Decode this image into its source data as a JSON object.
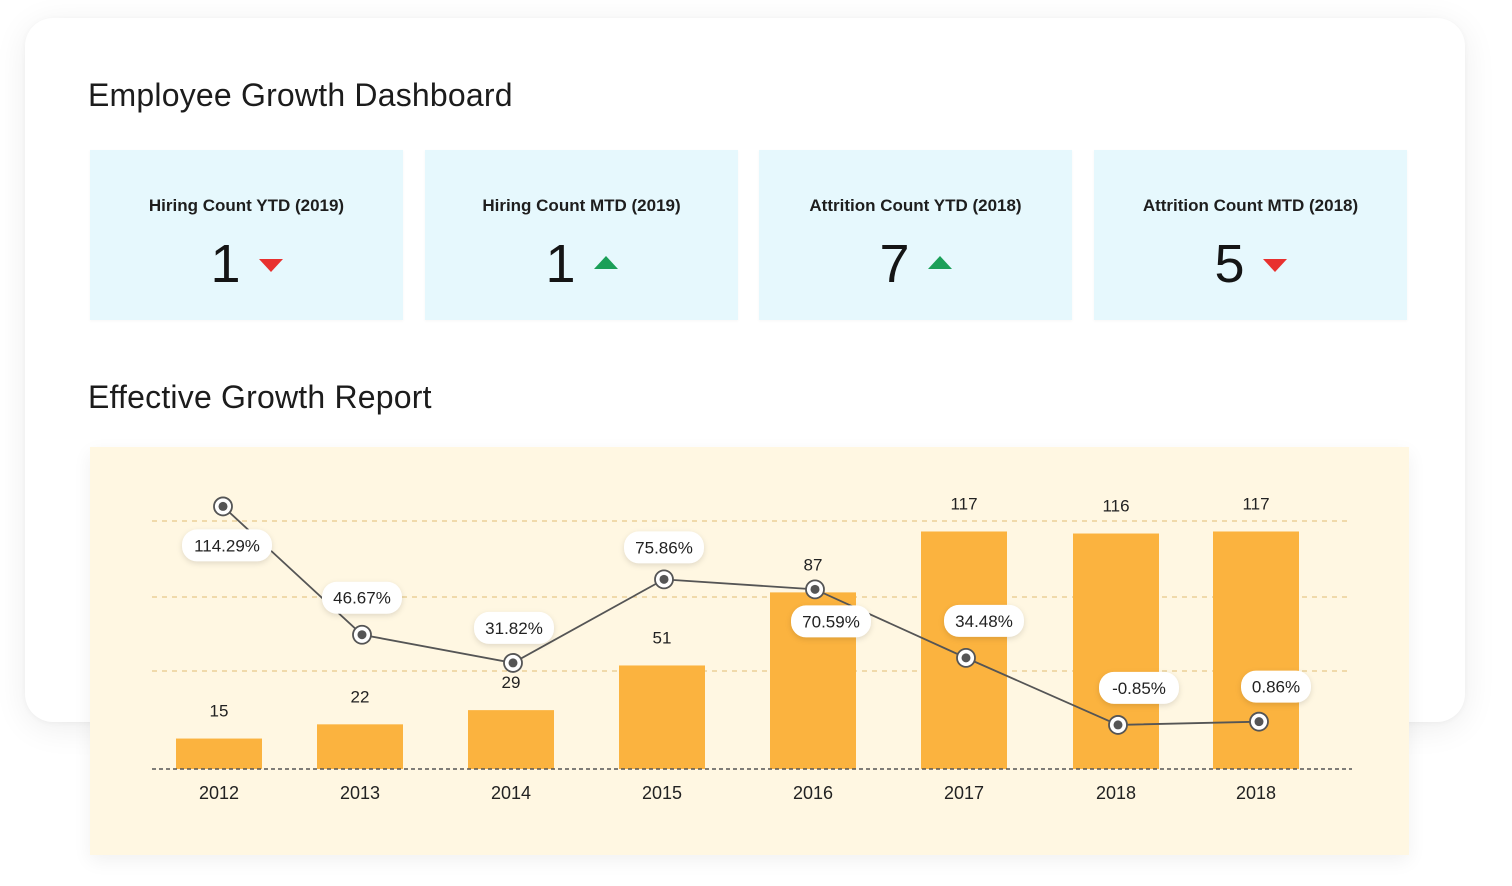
{
  "dashboard": {
    "title": "Employee Growth Dashboard"
  },
  "kpis": [
    {
      "label": "Hiring Count YTD (2019)",
      "value": "1",
      "trend": "down",
      "trend_icon": "triangle-down-icon"
    },
    {
      "label": "Hiring Count MTD (2019)",
      "value": "1",
      "trend": "up",
      "trend_icon": "triangle-up-icon"
    },
    {
      "label": "Attrition Count YTD (2018)",
      "value": "7",
      "trend": "up",
      "trend_icon": "triangle-up-icon"
    },
    {
      "label": "Attrition Count MTD (2018)",
      "value": "5",
      "trend": "down",
      "trend_icon": "triangle-down-icon"
    }
  ],
  "colors": {
    "kpi_background": "#e6f8fd",
    "trend_up": "#1a9f58",
    "trend_down": "#e8312f",
    "bar": "#fbb33f",
    "chart_background": "#fff7e2",
    "line": "#555555"
  },
  "report": {
    "title": "Effective Growth Report"
  },
  "chart_data": {
    "type": "bar",
    "categories": [
      "2012",
      "2013",
      "2014",
      "2015",
      "2016",
      "2017",
      "2018",
      "2018"
    ],
    "series": [
      {
        "type": "bar",
        "values": [
          15,
          22,
          29,
          51,
          87,
          117,
          116,
          117
        ]
      },
      {
        "type": "line",
        "values": [
          114.29,
          46.67,
          31.82,
          75.86,
          70.59,
          34.48,
          -0.85,
          0.86
        ],
        "value_labels": [
          "114.29%",
          "46.67%",
          "31.82%",
          "75.86%",
          "70.59%",
          "34.48%",
          "-0.85%",
          "0.86%"
        ]
      }
    ],
    "title": "",
    "xlabel": "",
    "ylabel": "",
    "ylim": [
      0,
      160
    ],
    "y2lim": [
      -20,
      135
    ],
    "grid": true,
    "legend": "none"
  }
}
